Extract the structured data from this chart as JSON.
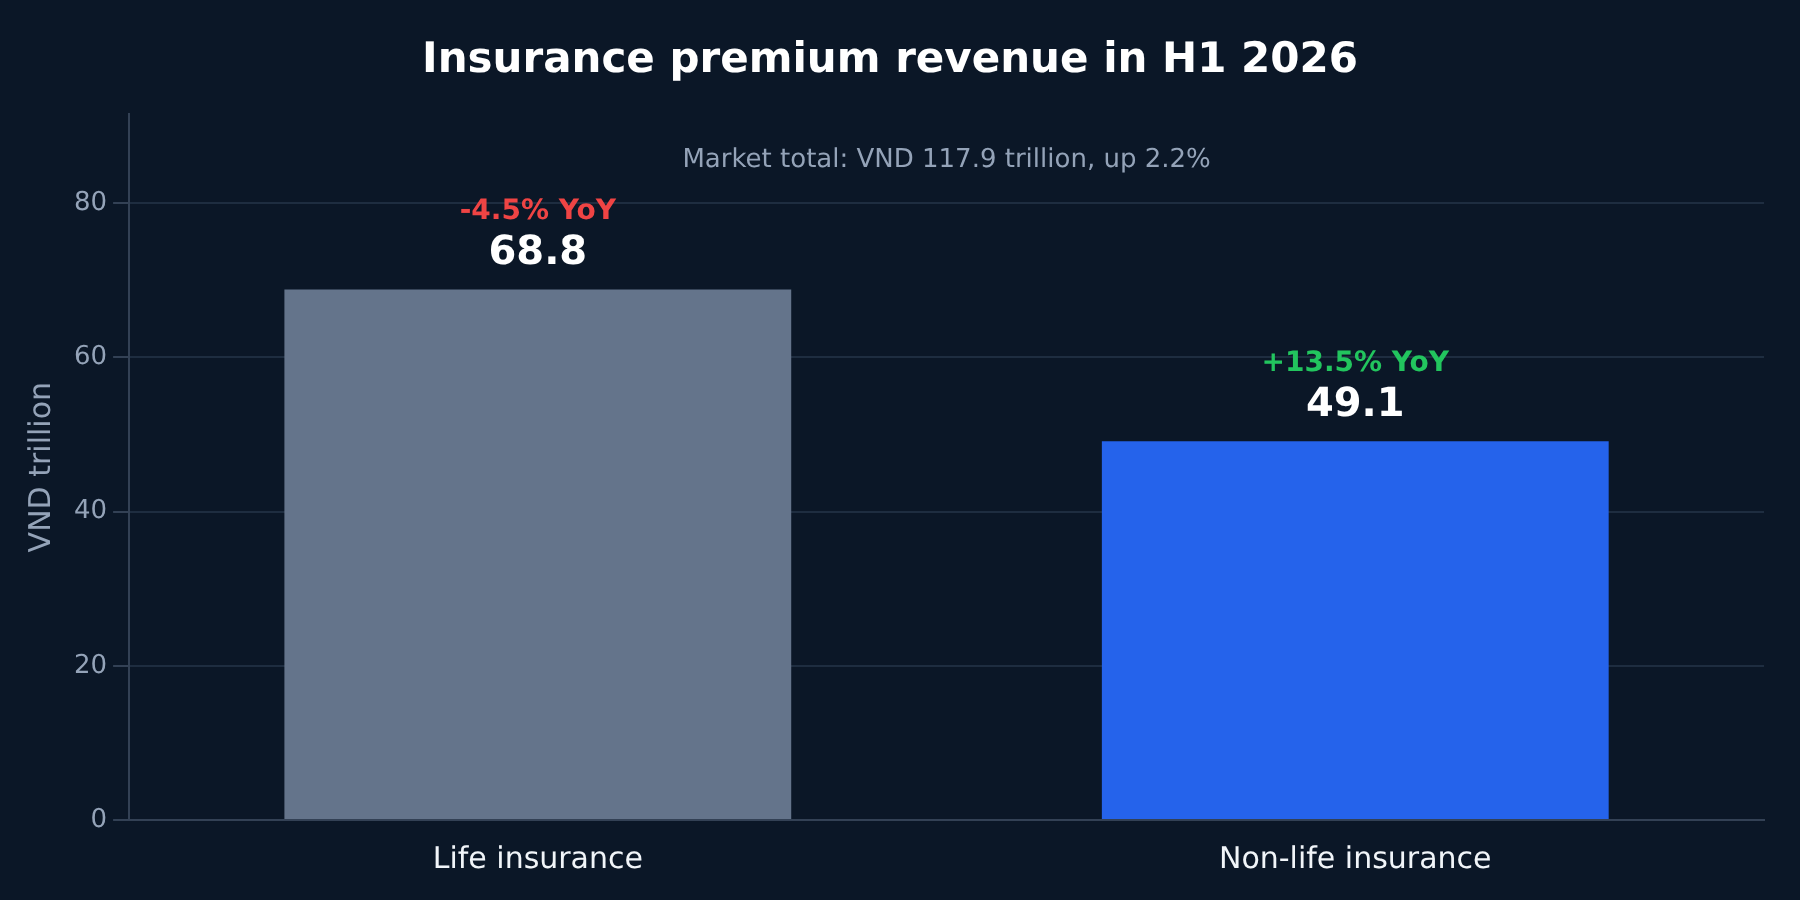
{
  "chart_data": {
    "type": "bar",
    "title": "Insurance premium revenue in H1 2026",
    "ylabel": "VND trillion",
    "categories": [
      "Life insurance",
      "Non-life insurance"
    ],
    "values": [
      68.8,
      49.1
    ],
    "colors": [
      "#64748b",
      "#2563eb"
    ],
    "ylim": [
      0,
      91.5
    ],
    "yticks": [
      0,
      20,
      40,
      60,
      80
    ],
    "grid": "y",
    "data_labels": true,
    "annotations": [
      "Market total: VND 117.9 trillion, up 2.2%",
      {
        "text": "-4.5% YoY",
        "x": "Life insurance",
        "y": 68.8
      },
      {
        "text": "+13.5% YoY",
        "x": "Non-life insurance",
        "y": 49.1
      }
    ]
  }
}
